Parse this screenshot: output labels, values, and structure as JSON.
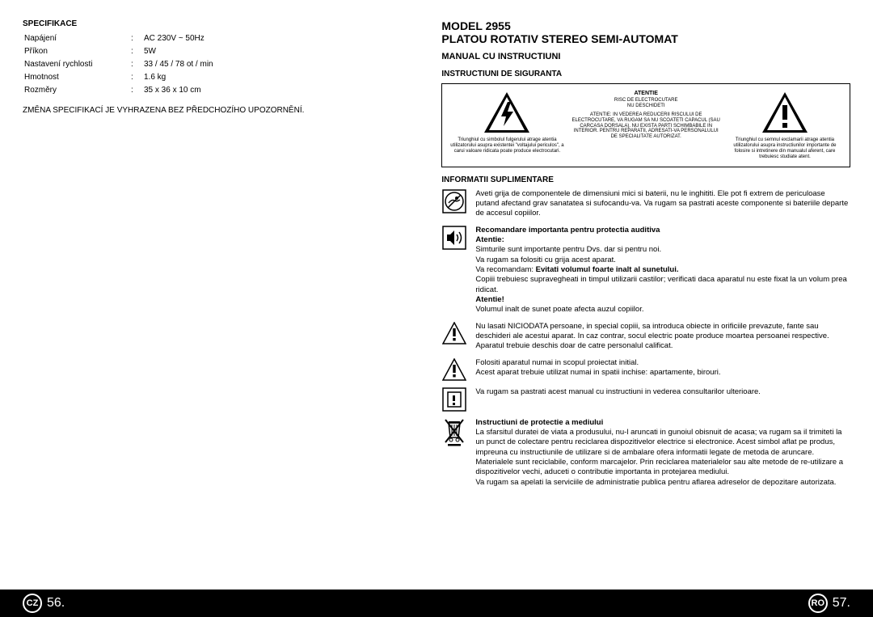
{
  "left": {
    "spec_title": "SPECIFIKACE",
    "rows": [
      {
        "label": "Napájení",
        "value": "AC 230V ~ 50Hz"
      },
      {
        "label": "Příkon",
        "value": "5W"
      },
      {
        "label": "Nastavení rychlosti",
        "value": "33 / 45 / 78 ot / min"
      },
      {
        "label": "Hmotnost",
        "value": "1.6 kg"
      },
      {
        "label": "Rozměry",
        "value": "35 x 36 x 10 cm"
      }
    ],
    "note": "ZMĚNA SPECIFIKACÍ JE VYHRAZENA BEZ PŘEDCHOZÍHO UPOZORNĚNÍ."
  },
  "right": {
    "model": "MODEL 2955",
    "product": "PLATOU ROTATIV STEREO SEMI-AUTOMAT",
    "manual": "MANUAL CU INSTRUCTIUNI",
    "safety_header": "INSTRUCTIUNI DE SIGURANTA",
    "warning": {
      "col1": "Triunghiul cu simbolul fulgerului atrage atentia utilizatorului asupra existentei \"voltajului periculos\", a carui valoare ridicata poate produce electrocutari.",
      "col2_head": "ATENTIE",
      "col2_risk": "RISC DE ELECTROCUTARE\nNU DESCHIDETI",
      "col2_body": "ATENTIE: IN VEDEREA REDUCERII RISCULUI DE ELECTROCUTARE, VA RUGAM SA NU SCOATETI CAPACUL (SAU CARCASA DORSALA). NU EXISTA PARTI SCHIMBABILE IN INTERIOR. PENTRU REPARATII, ADRESATI-VA PERSONALULUI DE SPECIALITATE AUTORIZAT.",
      "col3": "Triunghiul cu semnul exclamarii atrage atentia utilizatorului asupra instructiunilor importante de folosire si intretinere din manualul aferent, care trebuiesc studiate atent."
    },
    "supp_header": "INFORMATII SUPLIMENTARE",
    "items": {
      "i1": "Aveti grija de componentele de dimensiuni mici si baterii, nu le inghititi. Ele pot fi extrem de periculoase putand afectand grav sanatatea si sufocandu-va. Va rugam sa pastrati aceste componente si bateriile departe de accesul copiilor.",
      "i2_h1": "Recomandare importanta pentru protectia auditiva",
      "i2_h2": "Atentie:",
      "i2_a": "Simturile sunt importante pentru Dvs. dar si pentru noi.",
      "i2_b": "Va rugam sa folositi cu grija acest aparat.",
      "i2_c1": "Va recomandam: ",
      "i2_c2": "Evitati volumul foarte inalt al sunetului.",
      "i2_d": "Copiii trebuiesc supravegheati in timpul utilizarii castilor; verificati daca aparatul nu este fixat la un volum prea ridicat.",
      "i2_h3": "Atentie!",
      "i2_e": "Volumul inalt de sunet poate afecta auzul copiilor.",
      "i3": "Nu lasati NICIODATA persoane, in special copiii, sa introduca obiecte in orificiile prevazute, fante sau deschideri ale acestui aparat. In caz contrar, socul electric poate produce moartea persoanei respective. Aparatul trebuie deschis doar de catre personalul calificat.",
      "i4a": "Folositi aparatul numai in scopul proiectat initial.",
      "i4b": "Acest aparat trebuie utilizat numai in spatii inchise: apartamente, birouri.",
      "i5": "Va rugam sa pastrati acest manual cu instructiuni in vederea consultarilor ulterioare.",
      "i6_h": "Instructiuni de protectie a mediului",
      "i6_a": "La sfarsitul duratei de viata a produsului, nu-l aruncati in gunoiul obisnuit de acasa; va rugam sa il trimiteti la un punct de colectare pentru reciclarea dispozitivelor electrice si electronice. Acest simbol aflat pe produs, impreuna cu instructiunile de utilizare si de ambalare ofera informatii legate de metoda de aruncare.",
      "i6_b": "Materialele sunt reciclabile, conform marcajelor. Prin reciclarea materialelor sau alte metode de re-utilizare a dispozitivelor vechi, aduceti o contributie importanta in protejarea mediului.",
      "i6_c": "Va rugam sa apelati la serviciile de administratie publica pentru aflarea adreselor de depozitare autorizata."
    }
  },
  "footer": {
    "left_code": "CZ",
    "left_num": "56.",
    "right_code": "RO",
    "right_num": "57."
  },
  "colors": {
    "fg": "#000000",
    "bg": "#ffffff",
    "footer_bg": "#000000",
    "footer_fg": "#ffffff"
  }
}
